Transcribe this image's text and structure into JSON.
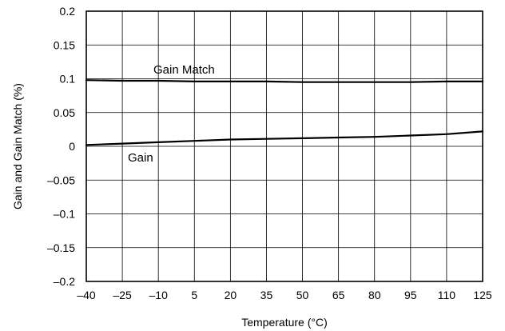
{
  "chart_data": {
    "type": "line",
    "xlabel": "Temperature (°C)",
    "ylabel": "Gain and Gain Match (%)",
    "xlim": [
      -40,
      125
    ],
    "ylim": [
      -0.2,
      0.2
    ],
    "x_ticks": [
      -40,
      -25,
      -10,
      5,
      20,
      35,
      50,
      65,
      80,
      95,
      110,
      125
    ],
    "x_tick_labels": [
      "–40",
      "–25",
      "–10",
      "5",
      "20",
      "35",
      "50",
      "65",
      "80",
      "95",
      "110",
      "125"
    ],
    "y_ticks": [
      0.2,
      0.15,
      0.1,
      0.05,
      0,
      -0.05,
      -0.1,
      -0.15,
      -0.2
    ],
    "y_tick_labels": [
      "0.2",
      "0.15",
      "0.1",
      "0.05",
      "0",
      "–0.05",
      "–0.1",
      "–0.15",
      "–0.2"
    ],
    "grid": true,
    "series": [
      {
        "name": "Gain Match",
        "x": [
          -40,
          -25,
          -10,
          5,
          20,
          35,
          50,
          65,
          80,
          95,
          110,
          125
        ],
        "values": [
          0.098,
          0.097,
          0.097,
          0.096,
          0.096,
          0.096,
          0.095,
          0.095,
          0.095,
          0.095,
          0.096,
          0.096
        ]
      },
      {
        "name": "Gain",
        "x": [
          -40,
          -25,
          -10,
          5,
          20,
          35,
          50,
          65,
          80,
          95,
          110,
          125
        ],
        "values": [
          0.002,
          0.004,
          0.006,
          0.008,
          0.01,
          0.011,
          0.012,
          0.013,
          0.014,
          0.016,
          0.018,
          0.022
        ]
      }
    ]
  }
}
